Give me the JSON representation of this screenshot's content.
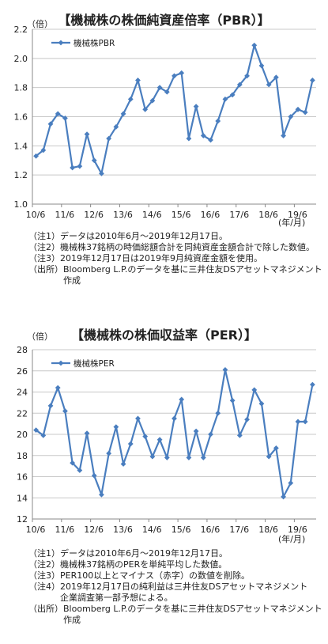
{
  "chart_data": [
    {
      "type": "line",
      "title": "【機械株の株価純資産倍率（PBR）】",
      "ylabel": "（倍）",
      "xlabel": "(年/月)",
      "ylim": [
        1.0,
        2.2
      ],
      "yticks": [
        "1.0",
        "1.2",
        "1.4",
        "1.6",
        "1.8",
        "2.0",
        "2.2"
      ],
      "xtick_labels": [
        "10/6",
        "11/6",
        "12/6",
        "13/6",
        "14/6",
        "15/6",
        "16/6",
        "17/6",
        "18/6",
        "19/6"
      ],
      "grid": true,
      "legend": "top-left",
      "color": "#4a7ebf",
      "series": [
        {
          "name": "機械株PBR",
          "values": [
            1.33,
            1.37,
            1.55,
            1.62,
            1.59,
            1.25,
            1.26,
            1.48,
            1.3,
            1.21,
            1.45,
            1.53,
            1.62,
            1.72,
            1.85,
            1.65,
            1.71,
            1.8,
            1.77,
            1.88,
            1.9,
            1.45,
            1.67,
            1.47,
            1.44,
            1.57,
            1.72,
            1.75,
            1.82,
            1.88,
            2.09,
            1.95,
            1.82,
            1.87,
            1.47,
            1.6,
            1.65,
            1.63,
            1.85
          ]
        }
      ]
    },
    {
      "type": "line",
      "title": "【機械株の株価収益率（PER）】",
      "ylabel": "（倍）",
      "xlabel": "(年/月)",
      "ylim": [
        12,
        28
      ],
      "yticks": [
        "12",
        "14",
        "16",
        "18",
        "20",
        "22",
        "24",
        "26",
        "28"
      ],
      "xtick_labels": [
        "10/6",
        "11/6",
        "12/6",
        "13/6",
        "14/6",
        "15/6",
        "16/6",
        "17/6",
        "18/6",
        "19/6"
      ],
      "grid": true,
      "legend": "top-left",
      "color": "#4a7ebf",
      "series": [
        {
          "name": "機械株PER",
          "values": [
            20.4,
            19.9,
            22.7,
            24.4,
            22.2,
            17.3,
            16.6,
            20.1,
            16.1,
            14.3,
            18.2,
            20.7,
            17.2,
            19.1,
            21.5,
            19.8,
            17.9,
            19.5,
            17.8,
            21.5,
            23.3,
            17.8,
            20.3,
            17.8,
            20.0,
            22.0,
            26.1,
            23.2,
            19.9,
            21.4,
            24.2,
            22.9,
            17.9,
            18.7,
            14.1,
            15.4,
            21.2,
            21.2,
            24.7
          ]
        }
      ]
    }
  ],
  "notes_pbr": [
    {
      "key": "（注1）",
      "text": "データは2010年6月～2019年12月17日。"
    },
    {
      "key": "（注2）",
      "text": "機械株37銘柄の時価総額合計を同純資産金額合計で除した数値。"
    },
    {
      "key": "（注3）",
      "text": "2019年12月17日は2019年9月純資産金額を使用。"
    },
    {
      "key": "（出所）",
      "text": "Bloomberg L.P.のデータを基に三井住友DSアセットマネジメント\n作成"
    }
  ],
  "notes_per": [
    {
      "key": "（注1）",
      "text": "データは2010年6月～2019年12月17日。"
    },
    {
      "key": "（注2）",
      "text": "機械株37銘柄のPERを単純平均した数値。"
    },
    {
      "key": "（注3）",
      "text": "PER100以上とマイナス（赤字）の数値を削除。"
    },
    {
      "key": "（注4）",
      "text": "2019年12月17日の純利益は三井住友DSアセットマネジメント\n企業調査第一部予想による。"
    },
    {
      "key": "（出所）",
      "text": "Bloomberg L.P.のデータを基に三井住友DSアセットマネジメント\n作成"
    }
  ]
}
